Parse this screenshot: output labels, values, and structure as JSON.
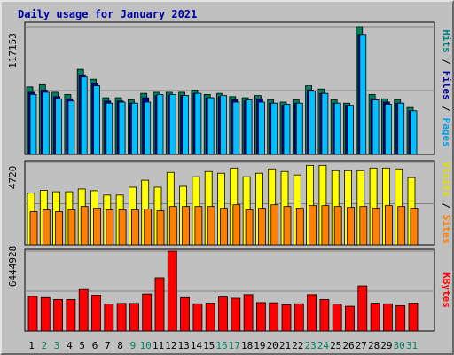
{
  "chart_data": {
    "type": "bar",
    "title": "Daily usage for January 2021",
    "categories": [
      "1",
      "2",
      "3",
      "4",
      "5",
      "6",
      "7",
      "8",
      "9",
      "10",
      "11",
      "12",
      "13",
      "14",
      "15",
      "16",
      "17",
      "18",
      "19",
      "20",
      "21",
      "22",
      "23",
      "24",
      "25",
      "26",
      "27",
      "28",
      "29",
      "30",
      "31"
    ],
    "weekend_days": [
      "2",
      "3",
      "9",
      "10",
      "16",
      "17",
      "23",
      "24",
      "30",
      "31"
    ],
    "panels": [
      {
        "scale_max_label": "117153",
        "scale_max": 117153,
        "right_labels": [
          {
            "text": "Hits",
            "color": "#008080"
          },
          {
            "text": " / ",
            "color": "#000000"
          },
          {
            "text": "Files",
            "color": "#0000a0"
          },
          {
            "text": " / ",
            "color": "#000000"
          },
          {
            "text": "Pages",
            "color": "#00a0e0"
          }
        ],
        "series": [
          {
            "name": "Hits",
            "color": "#008060",
            "values": [
              62000,
              64000,
              57000,
              55000,
              78000,
              69000,
              52000,
              52000,
              50000,
              56000,
              57000,
              57000,
              57000,
              59000,
              55000,
              56000,
              53000,
              52000,
              54000,
              50000,
              48000,
              50000,
              63000,
              60000,
              50000,
              47000,
              117153,
              55000,
              51000,
              50000,
              43000
            ]
          },
          {
            "name": "Files",
            "color": "#0000a0",
            "values": [
              57000,
              59000,
              53000,
              51000,
              73000,
              65000,
              49000,
              49000,
              47000,
              52000,
              54000,
              54000,
              54000,
              56000,
              52000,
              53000,
              50000,
              49000,
              51000,
              47000,
              45000,
              47000,
              59000,
              56000,
              47000,
              45000,
              110000,
              51000,
              48000,
              47000,
              40000
            ]
          },
          {
            "name": "Pages",
            "color": "#00c0ff",
            "values": [
              55000,
              57000,
              51000,
              49000,
              71000,
              63000,
              47000,
              48000,
              47000,
              48000,
              55000,
              55000,
              54000,
              56000,
              52000,
              54000,
              48000,
              50000,
              48000,
              47000,
              46000,
              47000,
              58000,
              56000,
              47000,
              45000,
              110000,
              50000,
              46000,
              47000,
              40000
            ]
          }
        ]
      },
      {
        "scale_max_label": "4720",
        "scale_max": 4720,
        "right_labels": [
          {
            "text": "Visits",
            "color": "#e0e000"
          },
          {
            "text": " / ",
            "color": "#000000"
          },
          {
            "text": "Sites",
            "color": "#ff8000"
          }
        ],
        "series": [
          {
            "name": "Visits",
            "color": "#ffff00",
            "values": [
              2960,
              3120,
              3040,
              3040,
              3200,
              3100,
              2850,
              2850,
              3300,
              3700,
              3300,
              4150,
              3350,
              3900,
              4200,
              4100,
              4400,
              3900,
              4100,
              4350,
              4200,
              4000,
              4550,
              4550,
              4250,
              4250,
              4250,
              4400,
              4400,
              4350,
              3850
            ]
          },
          {
            "name": "Sites",
            "color": "#ff8000",
            "values": [
              1900,
              2000,
              1900,
              2000,
              2200,
              2100,
              2000,
              2000,
              2000,
              2050,
              1950,
              2200,
              2200,
              2200,
              2200,
              2100,
              2300,
              2000,
              2100,
              2300,
              2200,
              2100,
              2250,
              2250,
              2200,
              2150,
              2200,
              2100,
              2250,
              2200,
              2100
            ]
          }
        ]
      },
      {
        "scale_max_label": "6444928",
        "scale_max": 6444928,
        "right_labels": [
          {
            "text": "KBytes",
            "color": "#ff0000"
          }
        ],
        "series": [
          {
            "name": "KBytes",
            "color": "#ff0000",
            "values": [
              2800000,
              2700000,
              2550000,
              2550000,
              3350000,
              2900000,
              2180000,
              2230000,
              2230000,
              3000000,
              4300000,
              6444928,
              2700000,
              2200000,
              2250000,
              2750000,
              2650000,
              2950000,
              2300000,
              2280000,
              2130000,
              2200000,
              2950000,
              2550000,
              2180000,
              2000000,
              3650000,
              2250000,
              2200000,
              2050000,
              2250000
            ]
          }
        ]
      }
    ]
  }
}
